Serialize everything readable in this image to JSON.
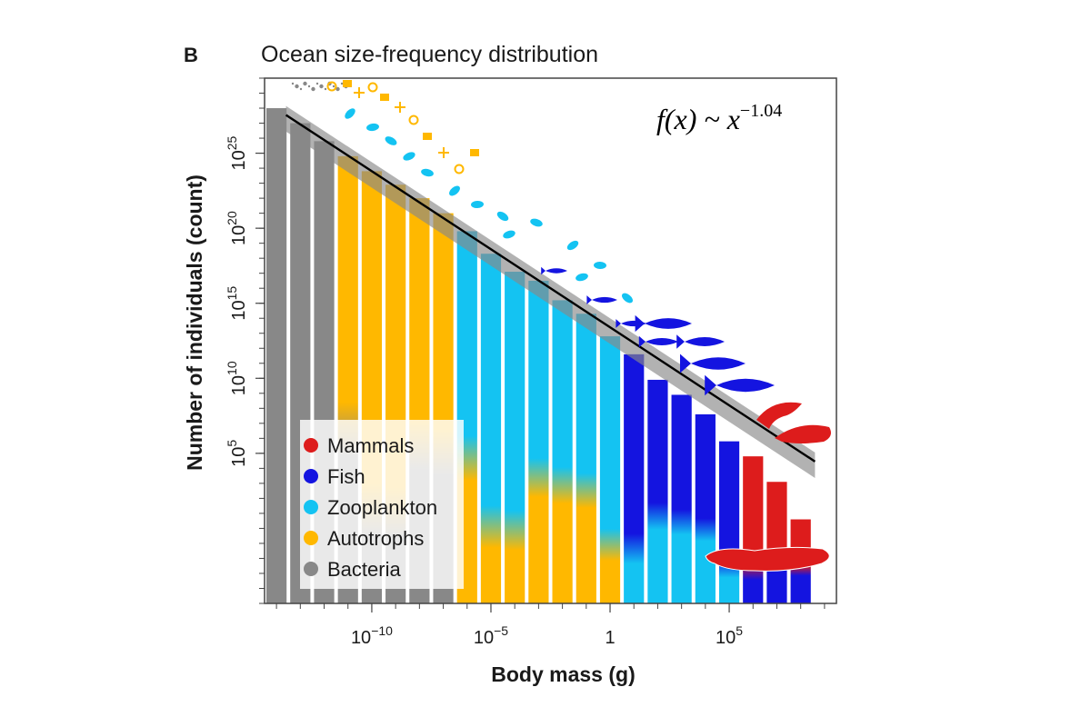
{
  "panel_letter": "B",
  "chart_data": {
    "type": "bar",
    "title": "Ocean size-frequency distribution",
    "xlabel": "Body mass (g)",
    "ylabel": "Number of individuals (count)",
    "x_scale": "log10",
    "y_scale": "log10",
    "x_tick_labels": [
      {
        "exp": -10,
        "label": "10",
        "sup": "−10"
      },
      {
        "exp": -5,
        "label": "10",
        "sup": "−5"
      },
      {
        "exp": 0,
        "label": "1",
        "sup": ""
      },
      {
        "exp": 5,
        "label": "10",
        "sup": "5"
      }
    ],
    "y_tick_labels": [
      {
        "exp": 5,
        "label": "10",
        "sup": "5"
      },
      {
        "exp": 10,
        "label": "10",
        "sup": "10"
      },
      {
        "exp": 15,
        "label": "10",
        "sup": "15"
      },
      {
        "exp": 20,
        "label": "10",
        "sup": "20"
      },
      {
        "exp": 25,
        "label": "10",
        "sup": "25"
      }
    ],
    "xlim_log10": [
      -14.5,
      9.5
    ],
    "ylim_log10": [
      -5,
      30
    ],
    "bin_width_log10": 1,
    "bins_log10_mass": [
      -14,
      -13,
      -12,
      -11,
      -10,
      -9,
      -8,
      -7,
      -6,
      -5,
      -4,
      -3,
      -2,
      -1,
      0,
      1,
      2,
      3,
      4,
      5,
      6,
      7,
      8
    ],
    "bins_log10_count": [
      28,
      27,
      25.8,
      24.8,
      23.8,
      22.9,
      22,
      21,
      19.8,
      18.3,
      17.1,
      16.5,
      15.2,
      14.3,
      12.8,
      11.6,
      9.9,
      8.9,
      7.6,
      5.8,
      4.8,
      3.1,
      0.6
    ],
    "bins_dominant_group": [
      "Bacteria",
      "Bacteria",
      "Bacteria",
      "Autotrophs",
      "Autotrophs",
      "Autotrophs",
      "Autotrophs",
      "Autotrophs",
      "Zooplankton",
      "Zooplankton",
      "Zooplankton",
      "Zooplankton",
      "Zooplankton",
      "Zooplankton",
      "Zooplankton",
      "Fish",
      "Fish",
      "Fish",
      "Fish",
      "Fish",
      "Mammals",
      "Mammals",
      "Mammals"
    ],
    "fit": {
      "formula": "f(x) ~ x",
      "exponent": "−1.04",
      "slope": -1.04
    },
    "legend_position": "bottom-left",
    "series": [
      {
        "name": "Mammals",
        "color": "#dd1c1c"
      },
      {
        "name": "Fish",
        "color": "#1414e0"
      },
      {
        "name": "Zooplankton",
        "color": "#14c3f2"
      },
      {
        "name": "Autotrophs",
        "color": "#ffb800"
      },
      {
        "name": "Bacteria",
        "color": "#888888"
      }
    ],
    "icon_groups": [
      "bacteria-icons",
      "autotroph-icons",
      "zooplankton-icons",
      "fish-icons",
      "mammal-icons",
      "whale-icon"
    ]
  }
}
